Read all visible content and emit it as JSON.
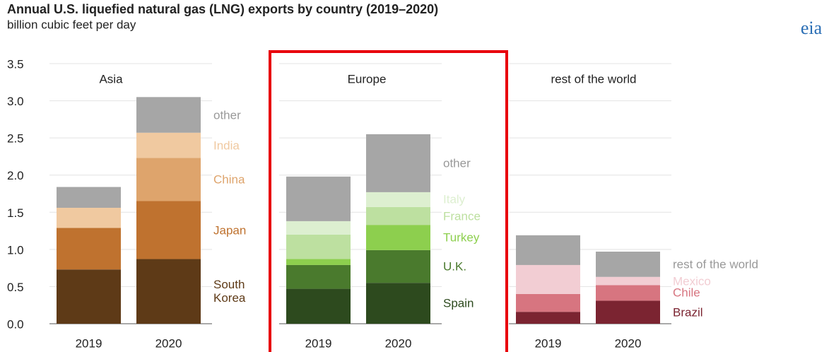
{
  "chart_data": {
    "type": "bar",
    "stacked": true,
    "title": "Annual U.S. liquefied natural gas (LNG) exports by country (2019–2020)",
    "subtitle": "billion cubic feet per day",
    "logo": "eia",
    "ylim": [
      0,
      3.5
    ],
    "yticks": [
      {
        "value": 0,
        "label": "0.0"
      },
      0.5,
      {
        "value": 1,
        "label": "1.0"
      },
      1.5,
      {
        "value": 2,
        "label": "2.0"
      },
      2.5,
      {
        "value": 3,
        "label": "3.0"
      },
      3.5
    ],
    "grid": true,
    "panels": [
      {
        "title": "Asia",
        "categories": [
          "2019",
          "2020"
        ],
        "series": [
          {
            "name": "South Korea",
            "color": "#5e3a17",
            "values": [
              0.73,
              0.87
            ]
          },
          {
            "name": "Japan",
            "color": "#bf722f",
            "values": [
              0.56,
              0.78
            ]
          },
          {
            "name": "China",
            "color": "#dea46c",
            "values": [
              0,
              0.58
            ]
          },
          {
            "name": "India",
            "color": "#f0c9a0",
            "values": [
              0.27,
              0.34
            ]
          },
          {
            "name": "other",
            "color": "#a6a6a6",
            "values": [
              0.28,
              0.48
            ]
          }
        ]
      },
      {
        "title": "Europe",
        "categories": [
          "2019",
          "2020"
        ],
        "series": [
          {
            "name": "Spain",
            "color": "#2d4a1e",
            "values": [
              0.47,
              0.55
            ]
          },
          {
            "name": "U.K.",
            "color": "#4a7a2d",
            "values": [
              0.32,
              0.44
            ]
          },
          {
            "name": "Turkey",
            "color": "#8dcf4e",
            "values": [
              0.08,
              0.34
            ]
          },
          {
            "name": "France",
            "color": "#bde0a0",
            "values": [
              0.33,
              0.24
            ]
          },
          {
            "name": "Italy",
            "color": "#ddefd0",
            "values": [
              0.18,
              0.2
            ]
          },
          {
            "name": "other",
            "color": "#a6a6a6",
            "values": [
              0.6,
              0.78
            ]
          }
        ]
      },
      {
        "title": "rest of the world",
        "categories": [
          "2019",
          "2020"
        ],
        "series": [
          {
            "name": "Brazil",
            "color": "#7b2431",
            "values": [
              0.16,
              0.31
            ]
          },
          {
            "name": "Chile",
            "color": "#d77580",
            "values": [
              0.24,
              0.21
            ]
          },
          {
            "name": "Mexico",
            "color": "#f2cdd3",
            "values": [
              0.39,
              0.11
            ]
          },
          {
            "name": "rest of the world",
            "color": "#a6a6a6",
            "values": [
              0.4,
              0.34
            ]
          }
        ]
      }
    ]
  }
}
